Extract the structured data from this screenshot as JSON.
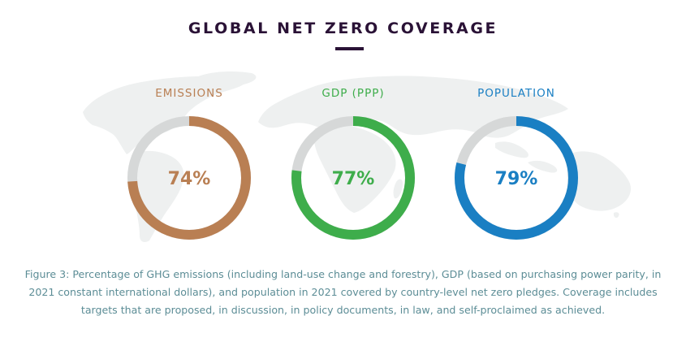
{
  "title": "GLOBAL NET ZERO COVERAGE",
  "colors": {
    "title": "#2a1236",
    "track": "#d6d8d8",
    "map": "#eef0f0",
    "caption": "#5c8d96"
  },
  "chart_data": {
    "type": "pie",
    "subtype": "donut",
    "title": "GLOBAL NET ZERO COVERAGE",
    "unit": "%",
    "series": [
      {
        "name": "EMISSIONS",
        "value": 74,
        "label": "74%",
        "color": "#b97f53"
      },
      {
        "name": "GDP (PPP)",
        "value": 77,
        "label": "77%",
        "color": "#3ead4b"
      },
      {
        "name": "POPULATION",
        "value": 79,
        "label": "79%",
        "color": "#1a7fc3"
      }
    ],
    "max": 100
  },
  "caption": {
    "lines": [
      "Figure 3: Percentage of GHG emissions (including land-use change and forestry), GDP (based on purchasing power parity, in",
      "2021 constant international dollars), and population in 2021 covered by country-level net zero pledges. Coverage includes",
      "targets that are proposed, in discussion, in policy documents, in law, and self-proclaimed as achieved."
    ]
  }
}
